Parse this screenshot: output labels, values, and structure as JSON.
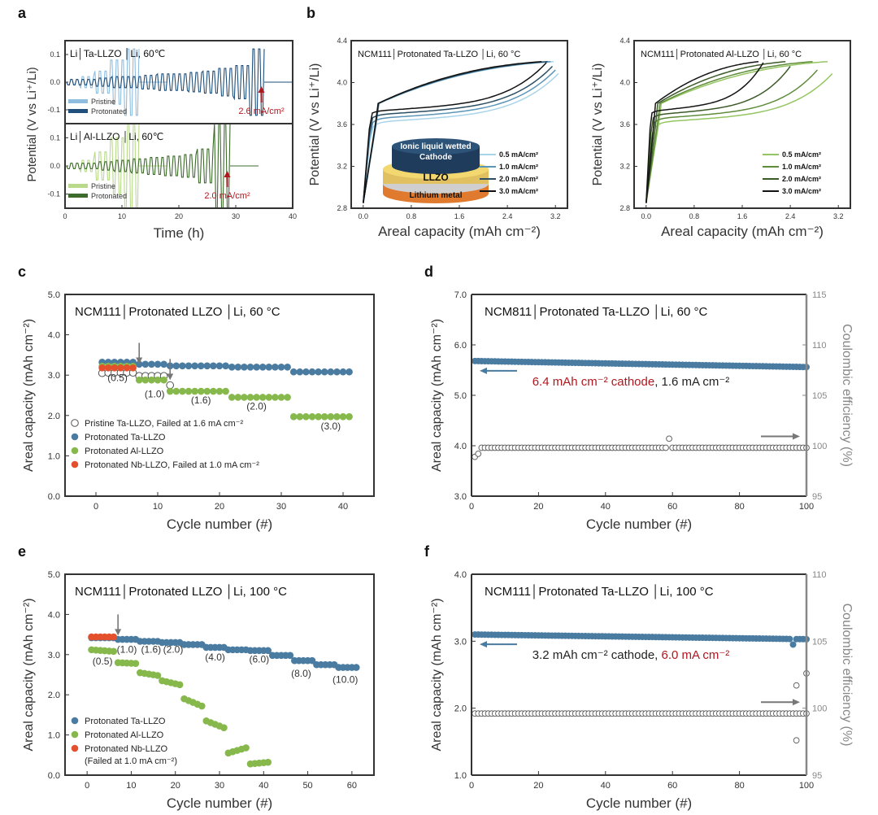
{
  "chart_data": [
    {
      "panel": "a",
      "type": "line",
      "subtype": "stacked-voltage-time",
      "x_label": "Time (h)",
      "y_label": "Potential (V vs Li⁺/Li)",
      "xlim": [
        0,
        40
      ],
      "x_ticks": [
        0,
        10,
        20,
        30,
        40
      ],
      "subplots": [
        {
          "title": "Li│Ta-LLZO │Li, 60℃",
          "ylim": [
            -0.15,
            0.15
          ],
          "y_ticks": [
            0.1,
            0.0,
            -0.1
          ],
          "annotation": "2.6 mA/cm²",
          "annotation_x": 34.5,
          "series": [
            {
              "name": "Pristine",
              "color": "#8fbde0",
              "fail_time": 13,
              "amplitudes": [
                0.01,
                0.02,
                0.04,
                0.08,
                0.12
              ]
            },
            {
              "name": "Protonated",
              "color": "#1f4f7a",
              "fail_time": 35,
              "amplitudes": [
                0.01,
                0.01,
                0.015,
                0.02,
                0.02,
                0.025,
                0.03,
                0.03,
                0.035,
                0.04,
                0.05,
                0.06,
                0.12
              ]
            }
          ]
        },
        {
          "title": "Li│Al-LLZO │Li, 60℃",
          "ylim": [
            -0.15,
            0.15
          ],
          "y_ticks": [
            0.1,
            0.0,
            -0.1
          ],
          "annotation": "2.0 mA/cm²",
          "annotation_x": 28.5,
          "series": [
            {
              "name": "Pristine",
              "color": "#b8da8a",
              "fail_time": 13,
              "amplitudes": [
                0.01,
                0.02,
                0.05,
                0.1,
                0.15
              ]
            },
            {
              "name": "Protonated",
              "color": "#3d6b2c",
              "fail_time": 29,
              "amplitudes": [
                0.01,
                0.01,
                0.015,
                0.02,
                0.025,
                0.03,
                0.035,
                0.04,
                0.06,
                0.15
              ]
            }
          ]
        }
      ]
    },
    {
      "panel": "b-left",
      "type": "line",
      "title": "NCM111│Protonated Ta-LLZO │Li, 60 °C",
      "x_label": "Areal capacity (mAh cm⁻²)",
      "y_label": "Potential (V vs Li⁺/Li)",
      "xlim": [
        -0.2,
        3.4
      ],
      "ylim": [
        2.8,
        4.4
      ],
      "x_ticks": [
        "0.0",
        "0.8",
        "1.6",
        "2.4",
        "3.2"
      ],
      "y_ticks": [
        "2.8",
        "3.2",
        "3.6",
        "4.0",
        "4.4"
      ],
      "inset": {
        "top_label": "Ionic liquid wetted",
        "top_label_2": "Cathode",
        "mid_label": "LLZO",
        "bottom_label": "Lithium metal"
      },
      "series": [
        {
          "name": "0.5 mA/cm²",
          "color": "#a8d4ea",
          "capacity": 3.25
        },
        {
          "name": "1.0 mA/cm²",
          "color": "#5b95b8",
          "capacity": 3.2
        },
        {
          "name": "2.0 mA/cm²",
          "color": "#2b4e64",
          "capacity": 3.15
        },
        {
          "name": "3.0 mA/cm²",
          "color": "#111111",
          "capacity": 3.05
        }
      ]
    },
    {
      "panel": "b-right",
      "type": "line",
      "title": "NCM111│Protonated Al-LLZO │Li, 60 °C",
      "x_label": "Areal capacity (mAh cm⁻²)",
      "y_label": "Potential (V vs Li⁺/Li)",
      "xlim": [
        -0.2,
        3.4
      ],
      "ylim": [
        2.8,
        4.4
      ],
      "x_ticks": [
        "0.0",
        "0.8",
        "1.6",
        "2.4",
        "3.2"
      ],
      "y_ticks": [
        "2.8",
        "3.2",
        "3.6",
        "4.0",
        "4.4"
      ],
      "series": [
        {
          "name": "0.5 mA/cm²",
          "color": "#94c560",
          "capacity": 3.1
        },
        {
          "name": "1.0 mA/cm²",
          "color": "#5f8c3a",
          "capacity": 2.85
        },
        {
          "name": "2.0 mA/cm²",
          "color": "#3c5a28",
          "capacity": 2.4
        },
        {
          "name": "3.0 mA/cm²",
          "color": "#141414",
          "capacity": 1.95
        }
      ]
    },
    {
      "panel": "c",
      "type": "scatter",
      "title": "NCM111│Protonated LLZO │Li, 60 °C",
      "x_label": "Cycle number (#)",
      "y_label": "Areal capacity (mAh cm⁻²)",
      "xlim": [
        -5,
        45
      ],
      "ylim": [
        0,
        5
      ],
      "x_ticks": [
        0,
        10,
        20,
        30,
        40
      ],
      "y_ticks": [
        "0.0",
        "1.0",
        "2.0",
        "3.0",
        "4.0",
        "5.0"
      ],
      "rate_labels": [
        {
          "text": "(0.5)",
          "x": 3.5,
          "y": 2.85
        },
        {
          "text": "(1.0)",
          "x": 9.5,
          "y": 2.45
        },
        {
          "text": "(1.6)",
          "x": 17,
          "y": 2.3
        },
        {
          "text": "(2.0)",
          "x": 26,
          "y": 2.15
        },
        {
          "text": "(3.0)",
          "x": 38,
          "y": 1.65
        }
      ],
      "arrows": [
        {
          "x": 7,
          "y": 3.8
        },
        {
          "x": 12,
          "y": 3.4
        }
      ],
      "series": [
        {
          "name": "Pristine Ta-LLZO, Failed at 1.6 mA cm⁻²",
          "marker": "open-circle",
          "color": "#555555",
          "points": [
            [
              1,
              3.05
            ],
            [
              2,
              3.06
            ],
            [
              3,
              3.06
            ],
            [
              4,
              3.06
            ],
            [
              5,
              3.06
            ],
            [
              6,
              3.06
            ],
            [
              7,
              2.98
            ],
            [
              8,
              2.98
            ],
            [
              9,
              2.98
            ],
            [
              10,
              2.98
            ],
            [
              11,
              2.98
            ],
            [
              12,
              2.75
            ]
          ]
        },
        {
          "name": "Protonated Ta-LLZO",
          "marker": "filled-circle",
          "color": "#4a7ba0",
          "segments": [
            [
              1,
              6,
              3.32
            ],
            [
              7,
              11,
              3.27
            ],
            [
              12,
              21,
              3.23
            ],
            [
              22,
              31,
              3.2
            ],
            [
              32,
              41,
              3.08
            ]
          ]
        },
        {
          "name": "Protonated Al-LLZO",
          "marker": "filled-circle",
          "color": "#86b84c",
          "segments": [
            [
              1,
              6,
              3.22
            ],
            [
              7,
              11,
              2.88
            ],
            [
              12,
              21,
              2.6
            ],
            [
              22,
              31,
              2.45
            ],
            [
              32,
              41,
              1.97
            ]
          ]
        },
        {
          "name": "Protonated Nb-LLZO, Failed at 1.0 mA cm⁻²",
          "marker": "filled-circle",
          "color": "#e3502b",
          "segments": [
            [
              1,
              6,
              3.18
            ]
          ]
        }
      ]
    },
    {
      "panel": "d",
      "type": "scatter",
      "dual_axis": true,
      "title": "NCM811│Protonated Ta-LLZO │Li, 60 °C",
      "x_label": "Cycle number (#)",
      "y_label": "Areal capacity (mAh cm⁻²)",
      "y2_label": "Coulombic efficiency (%)",
      "xlim": [
        0,
        100
      ],
      "ylim": [
        3,
        7
      ],
      "y2lim": [
        95,
        115
      ],
      "x_ticks": [
        0,
        20,
        40,
        60,
        80,
        100
      ],
      "y_ticks": [
        "3.0",
        "4.0",
        "5.0",
        "6.0",
        "7.0"
      ],
      "y2_ticks": [
        95,
        100,
        105,
        110,
        115
      ],
      "note": {
        "part1": "6.4 mAh cm⁻² cathode",
        "part2": ", 1.6 mA cm⁻²",
        "part1_color": "#b0171f",
        "part2_color": "#222222"
      },
      "capacity": {
        "color": "#4a7ba0",
        "start": 5.68,
        "end": 5.56,
        "n": 100
      },
      "efficiency": {
        "color": "#555555",
        "base": 99.8,
        "first": [
          98.9,
          99.2
        ],
        "outlier": [
          59,
          100.7
        ],
        "n": 100
      }
    },
    {
      "panel": "e",
      "type": "scatter",
      "title": "NCM111│Protonated LLZO │Li, 100 °C",
      "x_label": "Cycle number (#)",
      "y_label": "Areal capacity (mAh cm⁻²)",
      "xlim": [
        -5,
        65
      ],
      "ylim": [
        0,
        5
      ],
      "x_ticks": [
        0,
        10,
        20,
        30,
        40,
        50,
        60
      ],
      "y_ticks": [
        "0.0",
        "1.0",
        "2.0",
        "3.0",
        "4.0",
        "5.0"
      ],
      "rate_labels": [
        {
          "text": "(0.5)",
          "x": 3.5,
          "y": 2.75
        },
        {
          "text": "(1.0)",
          "x": 9,
          "y": 3.05
        },
        {
          "text": "(1.6)",
          "x": 14.5,
          "y": 3.05
        },
        {
          "text": "(2.0)",
          "x": 19.5,
          "y": 3.05
        },
        {
          "text": "(4.0)",
          "x": 29,
          "y": 2.85
        },
        {
          "text": "(6.0)",
          "x": 39,
          "y": 2.8
        },
        {
          "text": "(8.0)",
          "x": 48.5,
          "y": 2.45
        },
        {
          "text": "(10.0)",
          "x": 58.5,
          "y": 2.3
        }
      ],
      "arrows": [
        {
          "x": 7,
          "y": 4.0
        }
      ],
      "series": [
        {
          "name": "Protonated Ta-LLZO",
          "marker": "filled-circle",
          "color": "#4a7ba0",
          "segments": [
            [
              1,
              6,
              3.42
            ],
            [
              7,
              11,
              3.38
            ],
            [
              12,
              16,
              3.33
            ],
            [
              17,
              21,
              3.3
            ],
            [
              22,
              26,
              3.25
            ],
            [
              27,
              31,
              3.18
            ],
            [
              32,
              36,
              3.12
            ],
            [
              37,
              41,
              3.1
            ],
            [
              42,
              46,
              2.98
            ],
            [
              47,
              51,
              2.85
            ],
            [
              52,
              56,
              2.75
            ],
            [
              57,
              61,
              2.68
            ]
          ]
        },
        {
          "name": "Protonated Al-LLZO",
          "marker": "filled-circle",
          "color": "#86b84c",
          "decay_segments": [
            [
              1,
              6,
              3.12,
              3.08
            ],
            [
              7,
              11,
              2.8,
              2.78
            ],
            [
              12,
              16,
              2.55,
              2.48
            ],
            [
              17,
              21,
              2.35,
              2.25
            ],
            [
              22,
              26,
              1.9,
              1.72
            ],
            [
              27,
              31,
              1.35,
              1.18
            ],
            [
              32,
              36,
              0.55,
              0.68
            ],
            [
              37,
              41,
              0.28,
              0.32
            ]
          ]
        },
        {
          "name": "Protonated Nb-LLZO",
          "name_line2": "(Failed at 1.0 mA cm⁻²)",
          "marker": "filled-circle",
          "color": "#e3502b",
          "segments": [
            [
              1,
              6,
              3.44
            ]
          ]
        }
      ]
    },
    {
      "panel": "f",
      "type": "scatter",
      "dual_axis": true,
      "title": "NCM111│Protonated Ta-LLZO │Li, 100 °C",
      "x_label": "Cycle number (#)",
      "y_label": "Areal capacity (mAh cm⁻²)",
      "y2_label": "Coulombic efficiency (%)",
      "xlim": [
        0,
        100
      ],
      "ylim": [
        1,
        4
      ],
      "y2lim": [
        95,
        110
      ],
      "x_ticks": [
        0,
        20,
        40,
        60,
        80,
        100
      ],
      "y_ticks": [
        "1.0",
        "2.0",
        "3.0",
        "4.0"
      ],
      "y2_ticks": [
        95,
        100,
        105,
        110
      ],
      "note": {
        "part1": "3.2 mAh cm⁻² cathode, ",
        "part2": "6.0 mA cm⁻²",
        "part1_color": "#222222",
        "part2_color": "#b0171f"
      },
      "capacity": {
        "color": "#4a7ba0",
        "start": 3.1,
        "end": 3.03,
        "n": 100,
        "outlier": [
          96,
          2.95
        ]
      },
      "efficiency": {
        "color": "#555555",
        "base": 99.6,
        "outliers": [
          [
            97,
            101.7
          ],
          [
            97,
            97.6
          ],
          [
            100,
            102.6
          ]
        ],
        "n": 100
      }
    }
  ]
}
